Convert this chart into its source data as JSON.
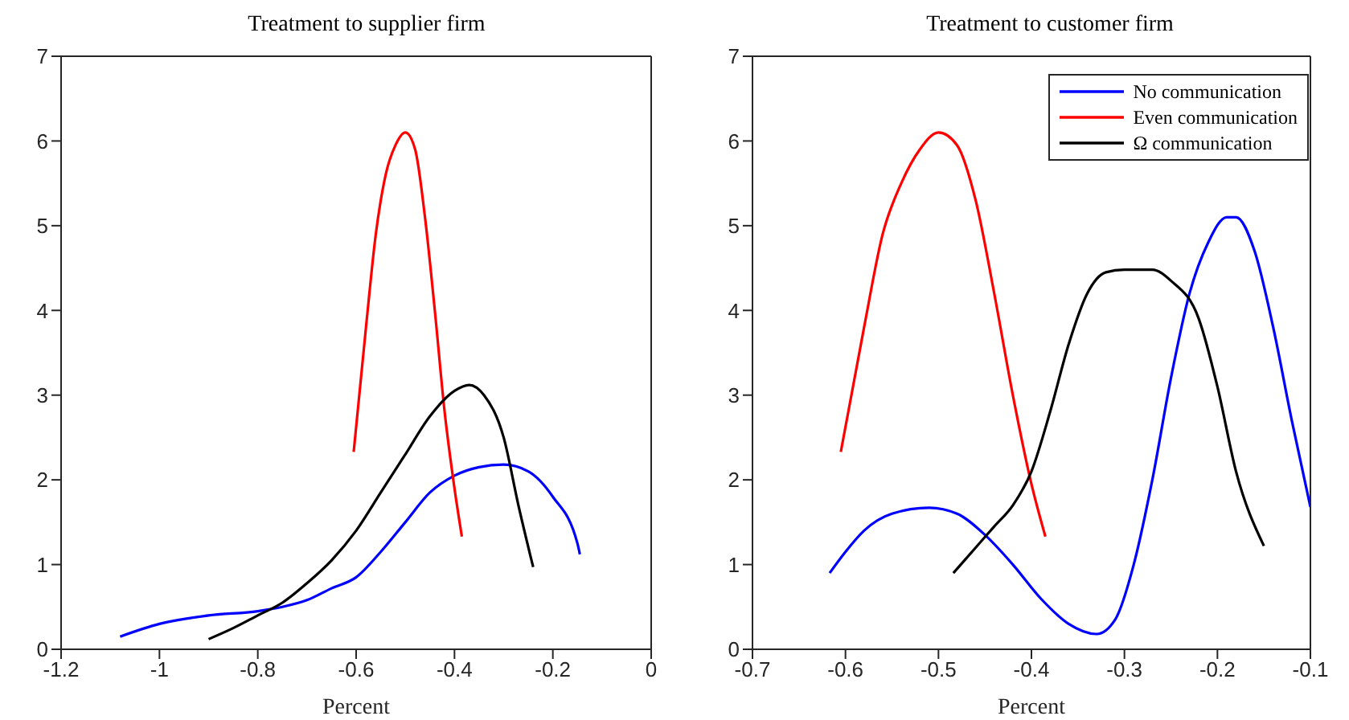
{
  "chart_data": [
    {
      "type": "line",
      "title": "Treatment to supplier firm",
      "xlabel": "Percent",
      "xlim": [
        -1.2,
        0
      ],
      "xticks": [
        -1.2,
        -1,
        -0.8,
        -0.6,
        -0.4,
        -0.2,
        0
      ],
      "ylim": [
        0,
        7
      ],
      "yticks": [
        0,
        1,
        2,
        3,
        4,
        5,
        6,
        7
      ],
      "legend": false,
      "marker": "none",
      "line_style": "solid",
      "series": [
        {
          "color": "#0000ff",
          "x": [
            -1.08,
            -1.0,
            -0.9,
            -0.8,
            -0.75,
            -0.7,
            -0.65,
            -0.6,
            -0.55,
            -0.5,
            -0.45,
            -0.4,
            -0.35,
            -0.3,
            -0.25,
            -0.2,
            -0.15,
            -0.145
          ],
          "values": [
            0.15,
            0.3,
            0.4,
            0.45,
            0.5,
            0.58,
            0.72,
            0.85,
            1.15,
            1.5,
            1.85,
            2.05,
            2.15,
            2.18,
            2.1,
            1.8,
            1.25,
            1.12
          ]
        },
        {
          "color": "#ff0000",
          "x": [
            -0.605,
            -0.58,
            -0.56,
            -0.54,
            -0.52,
            -0.5,
            -0.48,
            -0.46,
            -0.44,
            -0.42,
            -0.4,
            -0.385
          ],
          "values": [
            2.33,
            3.8,
            4.9,
            5.6,
            5.95,
            6.1,
            5.9,
            5.1,
            4.0,
            2.8,
            1.9,
            1.33
          ]
        },
        {
          "color": "#000000",
          "x": [
            -0.9,
            -0.85,
            -0.8,
            -0.75,
            -0.7,
            -0.65,
            -0.6,
            -0.55,
            -0.5,
            -0.45,
            -0.4,
            -0.37,
            -0.34,
            -0.3,
            -0.27,
            -0.24
          ],
          "values": [
            0.12,
            0.25,
            0.4,
            0.55,
            0.78,
            1.05,
            1.4,
            1.85,
            2.3,
            2.75,
            3.05,
            3.12,
            3.0,
            2.5,
            1.7,
            0.97
          ]
        }
      ]
    },
    {
      "type": "line",
      "title": "Treatment to customer firm",
      "xlabel": "Percent",
      "xlim": [
        -0.7,
        -0.1
      ],
      "xticks": [
        -0.7,
        -0.6,
        -0.5,
        -0.4,
        -0.3,
        -0.2,
        -0.1
      ],
      "ylim": [
        0,
        7
      ],
      "yticks": [
        0,
        1,
        2,
        3,
        4,
        5,
        6,
        7
      ],
      "legend": "top right",
      "marker": "none",
      "line_style": "solid",
      "series": [
        {
          "name": "No communication",
          "color": "#0000ff",
          "x": [
            -0.617,
            -0.6,
            -0.58,
            -0.55,
            -0.51,
            -0.48,
            -0.45,
            -0.42,
            -0.39,
            -0.36,
            -0.33,
            -0.31,
            -0.29,
            -0.27,
            -0.25,
            -0.23,
            -0.21,
            -0.19,
            -0.18,
            -0.16,
            -0.14,
            -0.12,
            -0.1
          ],
          "values": [
            0.9,
            1.15,
            1.4,
            1.6,
            1.67,
            1.6,
            1.35,
            1.0,
            0.6,
            0.3,
            0.18,
            0.35,
            1.0,
            2.0,
            3.2,
            4.2,
            4.8,
            5.1,
            5.1,
            4.7,
            3.8,
            2.7,
            1.68
          ]
        },
        {
          "name": "Even communication",
          "color": "#ff0000",
          "x": [
            -0.605,
            -0.58,
            -0.56,
            -0.54,
            -0.52,
            -0.5,
            -0.48,
            -0.46,
            -0.44,
            -0.42,
            -0.4,
            -0.385
          ],
          "values": [
            2.33,
            3.8,
            4.9,
            5.5,
            5.9,
            6.1,
            5.95,
            5.3,
            4.2,
            3.0,
            1.95,
            1.33
          ]
        },
        {
          "name": "Ω communication",
          "color": "#000000",
          "x": [
            -0.484,
            -0.46,
            -0.44,
            -0.42,
            -0.4,
            -0.38,
            -0.36,
            -0.34,
            -0.32,
            -0.3,
            -0.27,
            -0.25,
            -0.22,
            -0.2,
            -0.18,
            -0.15
          ],
          "values": [
            0.9,
            1.2,
            1.45,
            1.7,
            2.1,
            2.8,
            3.6,
            4.2,
            4.45,
            4.48,
            4.48,
            4.35,
            3.9,
            3.1,
            2.1,
            1.22
          ]
        }
      ]
    }
  ]
}
